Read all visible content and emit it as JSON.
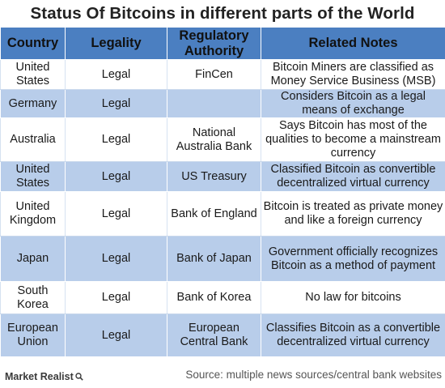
{
  "title": "Status Of Bitcoins  in different parts of the World",
  "headers": {
    "country": "Country",
    "legality": "Legality",
    "authority": "Regulatory Authority",
    "notes": "Related Notes"
  },
  "rows": [
    {
      "country": "United States",
      "legality": "Legal",
      "authority": "FinCen",
      "notes": "Bitcoin Miners are classified as Money Service Business (MSB)"
    },
    {
      "country": "Germany",
      "legality": "Legal",
      "authority": "",
      "notes": "Considers Bitcoin as a legal means of exchange"
    },
    {
      "country": "Australia",
      "legality": "Legal",
      "authority": "National Australia Bank",
      "notes": "Says Bitcoin has most of the qualities to become a mainstream currency"
    },
    {
      "country": "United States",
      "legality": "Legal",
      "authority": "US Treasury",
      "notes": "Classified Bitcoin as convertible decentralized virtual currency"
    },
    {
      "country": "United Kingdom",
      "legality": "Legal",
      "authority": "Bank of England",
      "notes": "Bitcoin is treated as private money and like a foreign currency"
    },
    {
      "country": "Japan",
      "legality": "Legal",
      "authority": "Bank of Japan",
      "notes": "Government officially recognizes Bitcoin as a method of payment"
    },
    {
      "country": "South Korea",
      "legality": "Legal",
      "authority": "Bank of Korea",
      "notes": "No law for bitcoins"
    },
    {
      "country": "European Union",
      "legality": "Legal",
      "authority": "European Central Bank",
      "notes": "Classifies Bitcoin as a convertible decentralized virtual currency"
    }
  ],
  "footer": {
    "brand": "Market Realist",
    "brand_icon": "magnifier-icon",
    "source": "Source: multiple  news sources/central bank websites"
  },
  "colors": {
    "header_bg": "#4b7fc1",
    "band_bg": "#b8cdea"
  }
}
